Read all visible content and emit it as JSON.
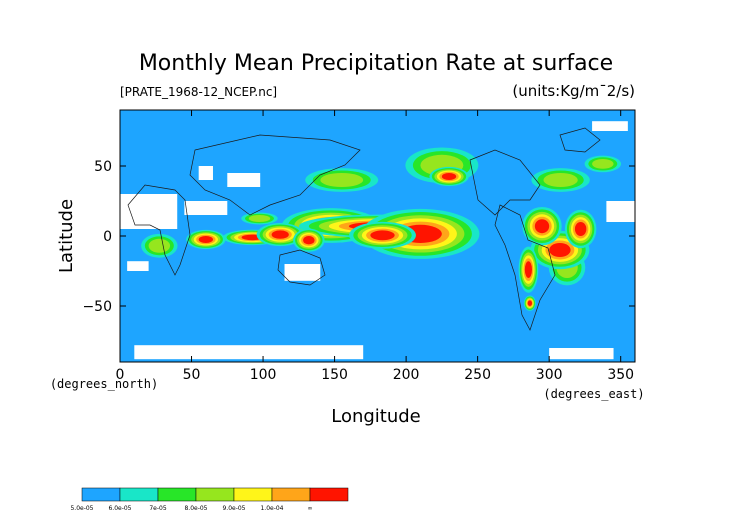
{
  "chart_data": {
    "type": "heatmap",
    "title": "Monthly Mean Precipitation Rate at surface",
    "subtitle_left": "[PRATE_1968-12_NCEP.nc]",
    "subtitle_right": "(units:Kg/m¯2/s)",
    "xlabel": "Longitude",
    "ylabel": "Latitude",
    "x_unit_label": "(degrees_east)",
    "y_unit_label": "(degrees_north)",
    "xlim": [
      0,
      360
    ],
    "ylim": [
      -90,
      90
    ],
    "x_ticks": [
      0,
      50,
      100,
      150,
      200,
      250,
      300,
      350
    ],
    "y_ticks": [
      -50,
      0,
      50
    ],
    "x_tick_labels": [
      "0",
      "50",
      "100",
      "150",
      "200",
      "250",
      "300",
      "350"
    ],
    "y_tick_labels": [
      "−50",
      "0",
      "50"
    ],
    "colorbar": {
      "labels": [
        "5.0e-05",
        "6.0e-05",
        "7e-05",
        "8.0e-05",
        "9.0e-05",
        "1.0e-04",
        "∞"
      ],
      "colors": [
        "#1ea5ff",
        "#19e6c8",
        "#28e628",
        "#96e61e",
        "#fff519",
        "#ffa519",
        "#ff1400"
      ]
    },
    "background_color": "#1ea5ff",
    "nodata_color": "#ffffff",
    "regions": [
      {
        "level": 6,
        "lon": [
          135,
          160
        ],
        "lat": [
          3,
          12
        ]
      },
      {
        "level": 6,
        "lon": [
          160,
          200
        ],
        "lat": [
          4,
          10
        ]
      },
      {
        "level": 6,
        "lon": [
          195,
          225
        ],
        "lat": [
          -5,
          8
        ]
      },
      {
        "level": 6,
        "lon": [
          175,
          192
        ],
        "lat": [
          -3,
          4
        ]
      },
      {
        "level": 6,
        "lon": [
          55,
          65
        ],
        "lat": [
          -5,
          0
        ]
      },
      {
        "level": 6,
        "lon": [
          85,
          100
        ],
        "lat": [
          -3,
          1
        ]
      },
      {
        "level": 6,
        "lon": [
          106,
          118
        ],
        "lat": [
          -2,
          4
        ]
      },
      {
        "level": 6,
        "lon": [
          300,
          315
        ],
        "lat": [
          -15,
          -5
        ]
      },
      {
        "level": 6,
        "lon": [
          290,
          300
        ],
        "lat": [
          2,
          12
        ]
      },
      {
        "level": 6,
        "lon": [
          318,
          326
        ],
        "lat": [
          0,
          10
        ]
      },
      {
        "level": 6,
        "lon": [
          283,
          288
        ],
        "lat": [
          -30,
          -18
        ]
      },
      {
        "level": 6,
        "lon": [
          128,
          136
        ],
        "lat": [
          -6,
          0
        ]
      },
      {
        "level": 6,
        "lon": [
          225,
          235
        ],
        "lat": [
          40,
          45
        ]
      },
      {
        "level": 6,
        "lon": [
          285,
          288
        ],
        "lat": [
          -50,
          -46
        ]
      },
      {
        "level": 3,
        "lon": [
          20,
          35
        ],
        "lat": [
          -12,
          -2
        ]
      },
      {
        "level": 3,
        "lon": [
          140,
          170
        ],
        "lat": [
          35,
          45
        ]
      },
      {
        "level": 3,
        "lon": [
          210,
          240
        ],
        "lat": [
          43,
          58
        ]
      },
      {
        "level": 3,
        "lon": [
          296,
          320
        ],
        "lat": [
          35,
          45
        ]
      },
      {
        "level": 3,
        "lon": [
          305,
          320
        ],
        "lat": [
          -30,
          -15
        ]
      },
      {
        "level": 3,
        "lon": [
          90,
          105
        ],
        "lat": [
          10,
          15
        ]
      },
      {
        "level": 3,
        "lon": [
          330,
          345
        ],
        "lat": [
          48,
          55
        ]
      }
    ],
    "nodata_regions": [
      {
        "lon": [
          0,
          40
        ],
        "lat": [
          5,
          30
        ]
      },
      {
        "lon": [
          45,
          75
        ],
        "lat": [
          15,
          25
        ]
      },
      {
        "lon": [
          75,
          98
        ],
        "lat": [
          35,
          45
        ]
      },
      {
        "lon": [
          55,
          65
        ],
        "lat": [
          40,
          50
        ]
      },
      {
        "lon": [
          340,
          360
        ],
        "lat": [
          10,
          25
        ]
      },
      {
        "lon": [
          115,
          140
        ],
        "lat": [
          -32,
          -20
        ]
      },
      {
        "lon": [
          5,
          20
        ],
        "lat": [
          -25,
          -18
        ]
      },
      {
        "lon": [
          285,
          290
        ],
        "lat": [
          -25,
          -15
        ]
      },
      {
        "lon": [
          10,
          170
        ],
        "lat": [
          -88,
          -78
        ]
      },
      {
        "lon": [
          300,
          345
        ],
        "lat": [
          -88,
          -80
        ]
      },
      {
        "lon": [
          330,
          355
        ],
        "lat": [
          75,
          82
        ]
      }
    ]
  }
}
